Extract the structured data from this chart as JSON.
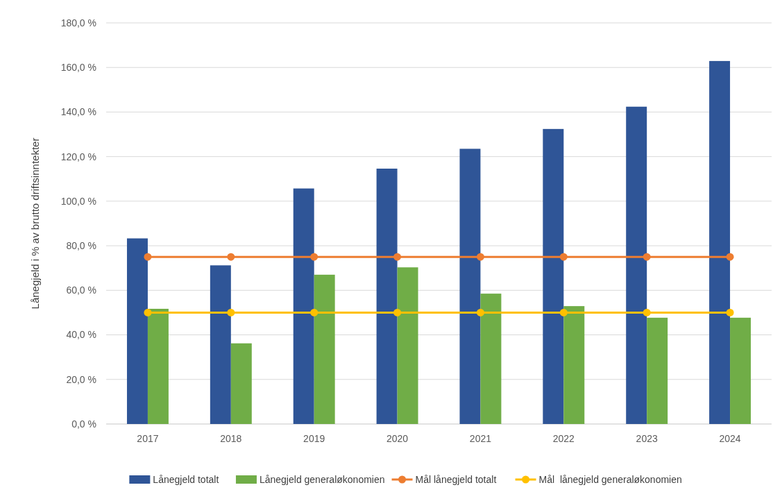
{
  "chart_data": {
    "type": "bar",
    "ylabel": "Lånegjeld i % av brutto driftsinntekter",
    "categories": [
      "2017",
      "2018",
      "2019",
      "2020",
      "2021",
      "2022",
      "2023",
      "2024"
    ],
    "series": [
      {
        "name": "Lånegjeld totalt",
        "color": "#2f5597",
        "values": [
          83.3,
          71.2,
          105.7,
          114.6,
          123.5,
          132.4,
          142.4,
          162.9
        ]
      },
      {
        "name": "Lånegjeld generaløkonomien",
        "color": "#70ad47",
        "values": [
          51.7,
          36.2,
          67.0,
          70.3,
          58.5,
          52.9,
          47.7,
          47.7
        ]
      },
      {
        "name": "Mål lånegjeld totalt",
        "type": "line",
        "color": "#ed7d31",
        "values": [
          75,
          75,
          75,
          75,
          75,
          75,
          75,
          75
        ]
      },
      {
        "name": "Mål  lånegjeld generaløkonomien",
        "type": "line",
        "color": "#ffc000",
        "values": [
          50,
          50,
          50,
          50,
          50,
          50,
          50,
          50
        ]
      }
    ],
    "ylim": [
      0,
      180
    ],
    "yticks": [
      {
        "value": 0,
        "label": "0,0 %"
      },
      {
        "value": 20,
        "label": "20,0 %"
      },
      {
        "value": 40,
        "label": "40,0 %"
      },
      {
        "value": 60,
        "label": "60,0 %"
      },
      {
        "value": 80,
        "label": "80,0 %"
      },
      {
        "value": 100,
        "label": "100,0 %"
      },
      {
        "value": 120,
        "label": "120,0 %"
      },
      {
        "value": 140,
        "label": "140,0 %"
      },
      {
        "value": 160,
        "label": "160,0 %"
      },
      {
        "value": 180,
        "label": "180,0 %"
      }
    ],
    "grid": "y",
    "legend": "bottom",
    "marker": "circle",
    "line_style": "solid"
  }
}
